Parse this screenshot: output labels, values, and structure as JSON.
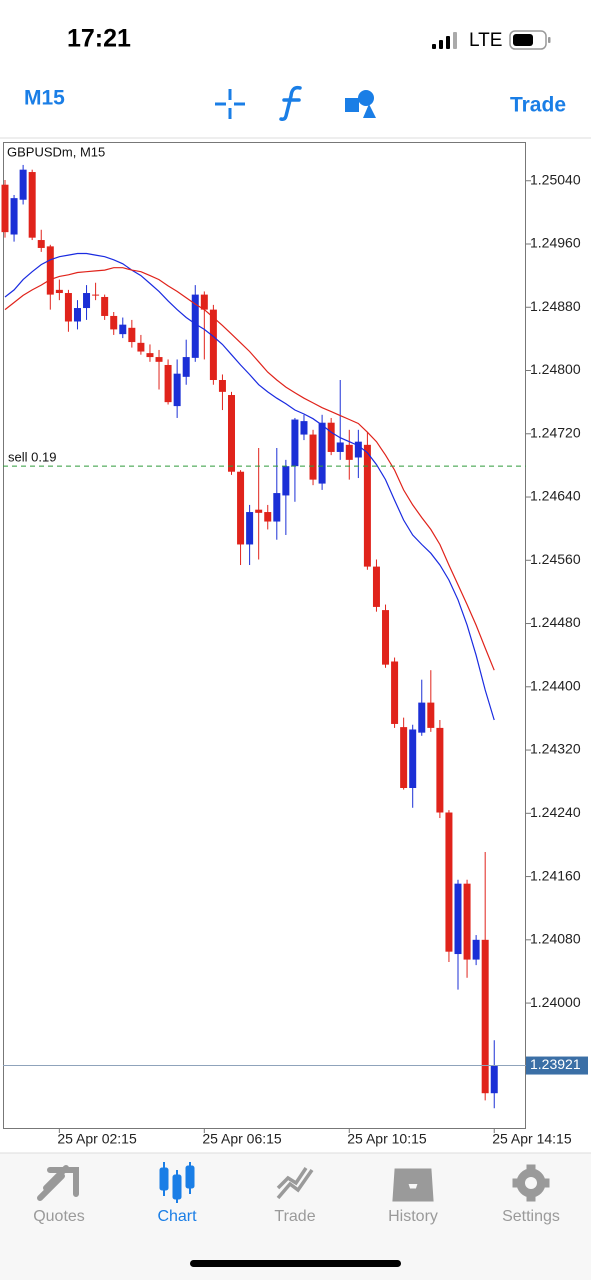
{
  "status_bar": {
    "time": "17:21",
    "network": "LTE"
  },
  "toolbar": {
    "timeframe": "M15",
    "trade": "Trade"
  },
  "chart_data": {
    "type": "candlestick",
    "title": "GBPUSDm, M15",
    "categories": [
      null,
      null,
      null,
      null,
      null,
      null,
      "25 Apr 02:15",
      null,
      null,
      null,
      null,
      null,
      null,
      null,
      null,
      null,
      null,
      null,
      null,
      null,
      null,
      null,
      "25 Apr 06:15",
      null,
      null,
      null,
      null,
      null,
      null,
      null,
      null,
      null,
      null,
      null,
      null,
      null,
      null,
      null,
      "25 Apr 10:15",
      null,
      null,
      null,
      null,
      null,
      null,
      null,
      null,
      null,
      null,
      null,
      null,
      null,
      null,
      null,
      "25 Apr 14:15"
    ],
    "open": [
      1.25035,
      1.24972,
      1.25016,
      1.25051,
      1.24965,
      1.24957,
      1.24902,
      1.24898,
      1.24862,
      1.24879,
      1.24896,
      1.24893,
      1.24869,
      1.24846,
      1.24854,
      1.24835,
      1.24822,
      1.24817,
      1.24807,
      1.24755,
      1.24792,
      1.24816,
      1.24896,
      1.24877,
      1.24788,
      1.24769,
      1.24672,
      1.2458,
      1.24624,
      1.24621,
      1.24609,
      1.24642,
      1.24679,
      1.24719,
      1.24719,
      1.24657,
      1.24734,
      1.24697,
      1.24706,
      1.2469,
      1.24706,
      1.24552,
      1.24497,
      1.24432,
      1.24349,
      1.24272,
      1.24342,
      1.2438,
      1.24348,
      1.24241,
      1.24062,
      1.24151,
      1.24055,
      1.2408,
      1.23886
    ],
    "high": [
      1.25041,
      1.25022,
      1.2506,
      1.25054,
      1.24978,
      1.24959,
      1.24915,
      1.24902,
      1.24889,
      1.24908,
      1.24911,
      1.24896,
      1.24874,
      1.24867,
      1.24864,
      1.24845,
      1.24833,
      1.24826,
      1.24814,
      1.24814,
      1.24839,
      1.24908,
      1.249,
      1.24883,
      1.24795,
      1.24773,
      1.24674,
      1.2463,
      1.24702,
      1.2463,
      1.24702,
      1.24687,
      1.2474,
      1.24744,
      1.24725,
      1.24744,
      1.2474,
      1.24788,
      1.24725,
      1.24725,
      1.24722,
      1.24561,
      1.24504,
      1.24437,
      1.24361,
      1.24352,
      1.24409,
      1.24421,
      1.24358,
      1.24244,
      1.24156,
      1.24156,
      1.24086,
      1.24191,
      1.23953
    ],
    "low": [
      1.24968,
      1.24963,
      1.2501,
      1.24965,
      1.2495,
      1.24877,
      1.24889,
      1.24849,
      1.24852,
      1.24864,
      1.24889,
      1.24864,
      1.24845,
      1.24841,
      1.24829,
      1.2482,
      1.24811,
      1.24776,
      1.24757,
      1.2474,
      1.24782,
      1.24811,
      1.24814,
      1.24782,
      1.2475,
      1.24668,
      1.24554,
      1.24554,
      1.24561,
      1.24599,
      1.24586,
      1.24592,
      1.24634,
      1.24712,
      1.24655,
      1.24649,
      1.24693,
      1.24687,
      1.24662,
      1.24664,
      1.24548,
      1.24495,
      1.24424,
      1.24348,
      1.2427,
      1.24247,
      1.24338,
      1.24343,
      1.24234,
      1.24052,
      1.24017,
      1.24032,
      1.24048,
      1.23877,
      1.23867
    ],
    "close": [
      1.24975,
      1.25018,
      1.25054,
      1.24968,
      1.24955,
      1.24896,
      1.24898,
      1.24862,
      1.24879,
      1.24898,
      1.24895,
      1.24869,
      1.24852,
      1.24858,
      1.24836,
      1.24824,
      1.24817,
      1.24811,
      1.2476,
      1.24796,
      1.24817,
      1.24896,
      1.24877,
      1.24788,
      1.24773,
      1.24672,
      1.2458,
      1.24621,
      1.2462,
      1.24609,
      1.24645,
      1.24679,
      1.24738,
      1.24736,
      1.24662,
      1.24734,
      1.24697,
      1.24709,
      1.24687,
      1.2471,
      1.24552,
      1.24501,
      1.24428,
      1.24353,
      1.24272,
      1.24346,
      1.2438,
      1.24348,
      1.24241,
      1.24065,
      1.24151,
      1.24055,
      1.2408,
      1.23886,
      1.23921
    ],
    "up_color": "#1b2fd6",
    "down_color": "#e0231b",
    "series": [
      {
        "color": "#1a2be0",
        "values": [
          1.24893,
          1.24902,
          1.24915,
          1.24925,
          1.24934,
          1.2494,
          1.24944,
          1.24946,
          1.24948,
          1.24948,
          1.24946,
          1.24944,
          1.2494,
          1.24935,
          1.24927,
          1.2492,
          1.2491,
          1.249,
          1.24888,
          1.24877,
          1.24867,
          1.24859,
          1.24852,
          1.24843,
          1.24833,
          1.2482,
          1.24807,
          1.24795,
          1.24782,
          1.24773,
          1.24765,
          1.24758,
          1.2475,
          1.24745,
          1.24739,
          1.24731,
          1.24722,
          1.24715,
          1.2471,
          1.24705,
          1.24696,
          1.24681,
          1.24662,
          1.24636,
          1.24611,
          1.24592,
          1.2458,
          1.24569,
          1.24554,
          1.24535,
          1.2451,
          1.24478,
          1.2444,
          1.24396,
          1.24358
        ]
      },
      {
        "color": "#e0231b",
        "values": [
          1.24877,
          1.24886,
          1.24895,
          1.24902,
          1.24908,
          1.24915,
          1.24919,
          1.24921,
          1.24924,
          1.24925,
          1.24926,
          1.24927,
          1.2493,
          1.2493,
          1.24927,
          1.24925,
          1.2492,
          1.24915,
          1.24907,
          1.249,
          1.24892,
          1.24884,
          1.24877,
          1.24867,
          1.24857,
          1.24846,
          1.24835,
          1.24824,
          1.24811,
          1.24798,
          1.24788,
          1.24779,
          1.24772,
          1.24765,
          1.24759,
          1.24753,
          1.24748,
          1.24743,
          1.24738,
          1.24733,
          1.24722,
          1.2471,
          1.24693,
          1.24674,
          1.24649,
          1.2463,
          1.24614,
          1.24599,
          1.2458,
          1.24554,
          1.24529,
          1.24504,
          1.24478,
          1.24449,
          1.24421
        ]
      }
    ],
    "ylim": [
      1.23842,
      1.25089
    ],
    "yticks": [
      {
        "value": 1.2504,
        "label": "1.25040"
      },
      {
        "value": 1.2496,
        "label": "1.24960"
      },
      {
        "value": 1.2488,
        "label": "1.24880"
      },
      {
        "value": 1.248,
        "label": "1.24800"
      },
      {
        "value": 1.2472,
        "label": "1.24720"
      },
      {
        "value": 1.2464,
        "label": "1.24640"
      },
      {
        "value": 1.2456,
        "label": "1.24560"
      },
      {
        "value": 1.2448,
        "label": "1.24480"
      },
      {
        "value": 1.244,
        "label": "1.24400"
      },
      {
        "value": 1.2432,
        "label": "1.24320"
      },
      {
        "value": 1.2424,
        "label": "1.24240"
      },
      {
        "value": 1.2416,
        "label": "1.24160"
      },
      {
        "value": 1.2408,
        "label": "1.24080"
      },
      {
        "value": 1.24,
        "label": "1.24000"
      }
    ],
    "grid": false,
    "sell_line": {
      "label": "sell 0.19",
      "value": 1.24679,
      "color": "#2e9a3a"
    },
    "current_price": 1.23921
  },
  "tab_bar": {
    "tabs": [
      "Quotes",
      "Chart",
      "Trade",
      "History",
      "Settings"
    ],
    "active": 1
  }
}
